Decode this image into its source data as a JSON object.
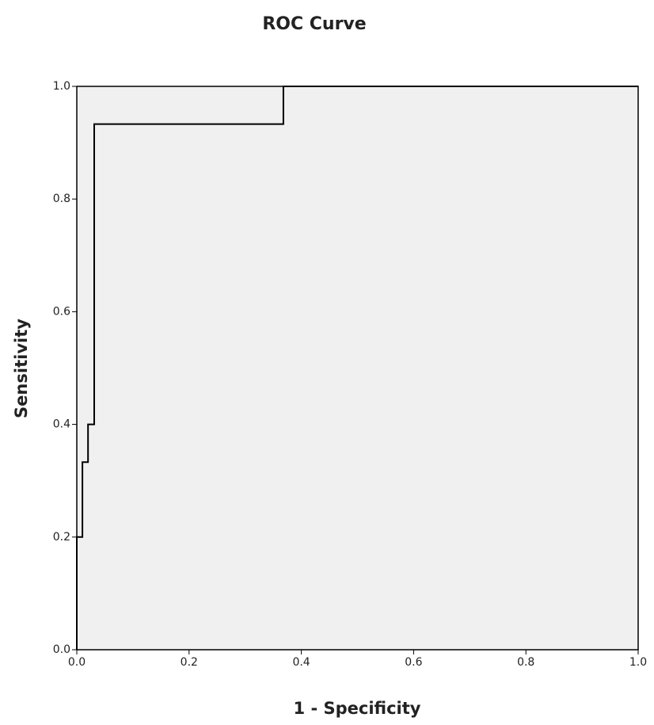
{
  "chart_data": {
    "type": "line",
    "title": "ROC Curve",
    "x_label": "1 - Specificity",
    "y_label": "Sensitivity",
    "x": [
      0,
      0,
      0.01,
      0.01,
      0.02,
      0.02,
      0.031,
      0.031,
      0.368,
      0.368,
      1
    ],
    "series": [
      {
        "color": "#000000",
        "values": [
          0,
          0.2,
          0.2,
          0.333,
          0.333,
          0.4,
          0.4,
          0.933,
          0.933,
          1,
          1
        ]
      }
    ],
    "xlim": [
      0,
      1
    ],
    "ylim": [
      0,
      1
    ],
    "xticks": [
      {
        "value": 0,
        "label": "0.0"
      },
      0.2,
      0.4,
      0.6,
      0.8,
      {
        "value": 1,
        "label": "1.0"
      }
    ],
    "yticks": [
      {
        "value": 0,
        "label": "0.0"
      },
      0.2,
      0.4,
      0.6,
      0.8,
      {
        "value": 1,
        "label": "1.0"
      }
    ],
    "grid": false,
    "plot_background": "#f0f0f0"
  }
}
